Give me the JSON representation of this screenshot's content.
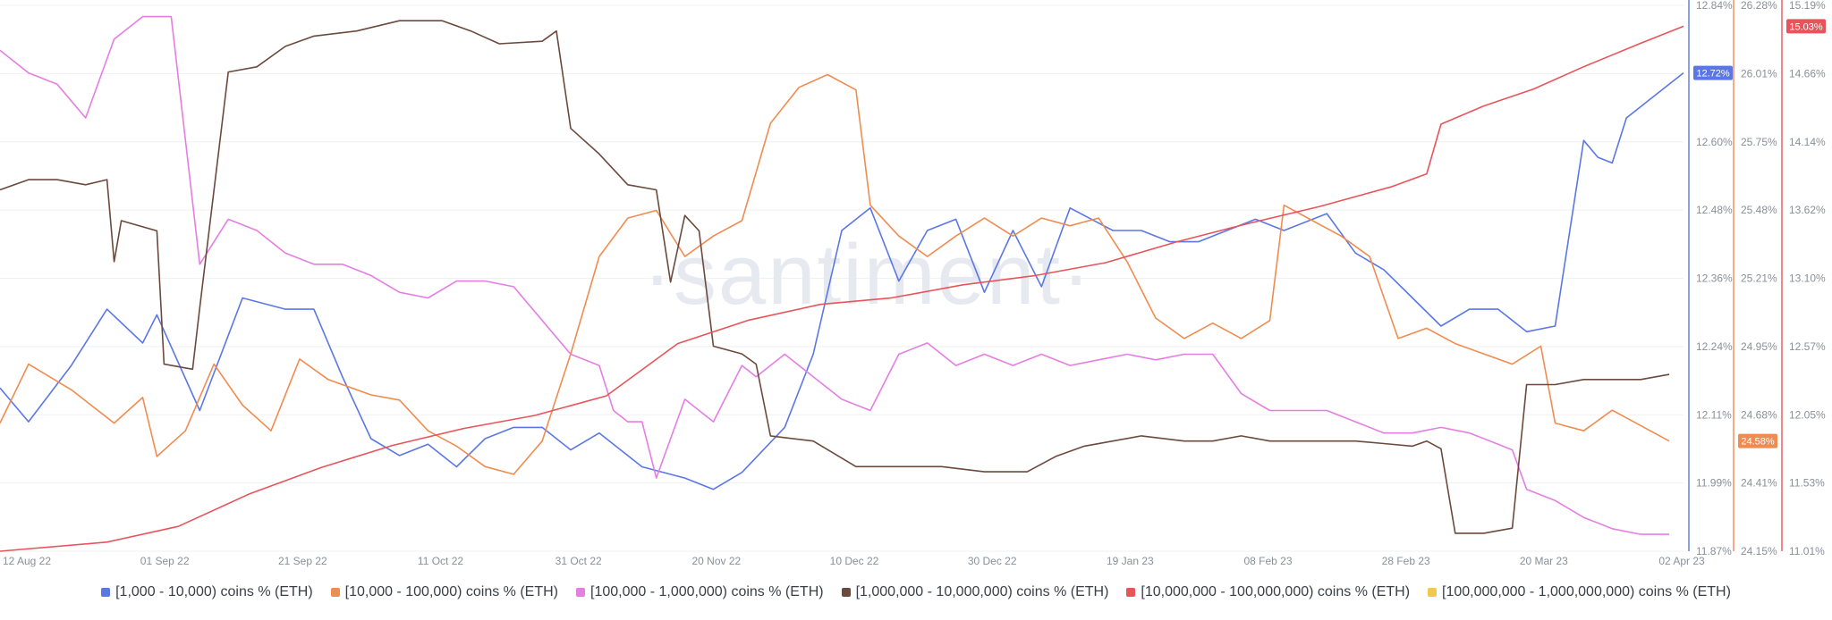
{
  "watermark": "·santiment·",
  "colors": {
    "grid": "#eef0f3",
    "tick": "#8a8f98"
  },
  "chart_data": {
    "type": "line",
    "x_labels": [
      "12 Aug 22",
      "01 Sep 22",
      "21 Sep 22",
      "11 Oct 22",
      "31 Oct 22",
      "20 Nov 22",
      "10 Dec 22",
      "30 Dec 22",
      "19 Jan 23",
      "08 Feb 23",
      "28 Feb 23",
      "20 Mar 23",
      "02 Apr 23"
    ],
    "x_range_days": [
      0,
      236
    ],
    "grid": true,
    "legend_position": "bottom",
    "axes": [
      {
        "id": "blue",
        "ticks": [
          "12.84%",
          "12.72%",
          "12.60%",
          "12.48%",
          "12.36%",
          "12.24%",
          "12.11%",
          "11.99%",
          "11.87%"
        ],
        "ylim": [
          11.87,
          12.84
        ],
        "color": "#5b77e6"
      },
      {
        "id": "orange",
        "ticks": [
          "26.28%",
          "26.01%",
          "25.75%",
          "25.48%",
          "25.21%",
          "24.95%",
          "24.68%",
          "24.41%",
          "24.15%"
        ],
        "ylim": [
          24.15,
          26.28
        ],
        "color": "#f08c50"
      },
      {
        "id": "red",
        "ticks": [
          "15.19%",
          "14.66%",
          "14.14%",
          "13.62%",
          "13.10%",
          "12.57%",
          "12.05%",
          "11.53%",
          "11.01%"
        ],
        "ylim": [
          11.01,
          15.19
        ],
        "color": "#e8545a"
      }
    ],
    "badges": [
      {
        "axis": "blue",
        "value": 12.72,
        "label": "12.72%",
        "color": "#5b77e6"
      },
      {
        "axis": "orange",
        "value": 24.58,
        "label": "24.58%",
        "color": "#f08c50"
      },
      {
        "axis": "red",
        "value": 15.03,
        "label": "15.03%",
        "color": "#e8545a"
      }
    ],
    "series": [
      {
        "name": "[1,000 - 10,000) coins % (ETH)",
        "color": "#5b77e6",
        "axis": "blue",
        "points": [
          [
            0,
            12.16
          ],
          [
            4,
            12.1
          ],
          [
            10,
            12.2
          ],
          [
            15,
            12.3
          ],
          [
            20,
            12.24
          ],
          [
            22,
            12.29
          ],
          [
            28,
            12.12
          ],
          [
            34,
            12.32
          ],
          [
            40,
            12.3
          ],
          [
            44,
            12.3
          ],
          [
            48,
            12.18
          ],
          [
            52,
            12.07
          ],
          [
            56,
            12.04
          ],
          [
            60,
            12.06
          ],
          [
            64,
            12.02
          ],
          [
            68,
            12.07
          ],
          [
            72,
            12.09
          ],
          [
            76,
            12.09
          ],
          [
            80,
            12.05
          ],
          [
            84,
            12.08
          ],
          [
            90,
            12.02
          ],
          [
            96,
            12.0
          ],
          [
            100,
            11.98
          ],
          [
            104,
            12.01
          ],
          [
            110,
            12.09
          ],
          [
            114,
            12.22
          ],
          [
            118,
            12.44
          ],
          [
            122,
            12.48
          ],
          [
            126,
            12.35
          ],
          [
            130,
            12.44
          ],
          [
            134,
            12.46
          ],
          [
            138,
            12.33
          ],
          [
            142,
            12.44
          ],
          [
            146,
            12.34
          ],
          [
            150,
            12.48
          ],
          [
            156,
            12.44
          ],
          [
            160,
            12.44
          ],
          [
            164,
            12.42
          ],
          [
            168,
            12.42
          ],
          [
            172,
            12.44
          ],
          [
            176,
            12.46
          ],
          [
            180,
            12.44
          ],
          [
            186,
            12.47
          ],
          [
            190,
            12.4
          ],
          [
            194,
            12.37
          ],
          [
            198,
            12.32
          ],
          [
            202,
            12.27
          ],
          [
            206,
            12.3
          ],
          [
            210,
            12.3
          ],
          [
            214,
            12.26
          ],
          [
            218,
            12.27
          ],
          [
            222,
            12.6
          ],
          [
            224,
            12.57
          ],
          [
            226,
            12.56
          ],
          [
            228,
            12.64
          ],
          [
            232,
            12.68
          ],
          [
            236,
            12.72
          ]
        ]
      },
      {
        "name": "[10,000 - 100,000) coins % (ETH)",
        "color": "#f08c50",
        "axis": "orange",
        "points": [
          [
            0,
            24.65
          ],
          [
            4,
            24.88
          ],
          [
            10,
            24.78
          ],
          [
            16,
            24.65
          ],
          [
            20,
            24.75
          ],
          [
            22,
            24.52
          ],
          [
            26,
            24.62
          ],
          [
            30,
            24.88
          ],
          [
            34,
            24.72
          ],
          [
            38,
            24.62
          ],
          [
            42,
            24.9
          ],
          [
            46,
            24.82
          ],
          [
            52,
            24.76
          ],
          [
            56,
            24.74
          ],
          [
            60,
            24.62
          ],
          [
            64,
            24.56
          ],
          [
            68,
            24.48
          ],
          [
            72,
            24.45
          ],
          [
            76,
            24.58
          ],
          [
            80,
            24.92
          ],
          [
            84,
            25.3
          ],
          [
            88,
            25.45
          ],
          [
            92,
            25.48
          ],
          [
            96,
            25.3
          ],
          [
            100,
            25.38
          ],
          [
            104,
            25.44
          ],
          [
            108,
            25.82
          ],
          [
            112,
            25.96
          ],
          [
            116,
            26.01
          ],
          [
            120,
            25.95
          ],
          [
            122,
            25.5
          ],
          [
            126,
            25.38
          ],
          [
            130,
            25.3
          ],
          [
            134,
            25.38
          ],
          [
            138,
            25.45
          ],
          [
            142,
            25.38
          ],
          [
            146,
            25.45
          ],
          [
            150,
            25.42
          ],
          [
            154,
            25.45
          ],
          [
            158,
            25.28
          ],
          [
            162,
            25.06
          ],
          [
            166,
            24.98
          ],
          [
            170,
            25.04
          ],
          [
            174,
            24.98
          ],
          [
            178,
            25.05
          ],
          [
            180,
            25.5
          ],
          [
            184,
            25.44
          ],
          [
            188,
            25.38
          ],
          [
            192,
            25.3
          ],
          [
            196,
            24.98
          ],
          [
            200,
            25.02
          ],
          [
            204,
            24.96
          ],
          [
            208,
            24.92
          ],
          [
            212,
            24.88
          ],
          [
            216,
            24.95
          ],
          [
            218,
            24.65
          ],
          [
            222,
            24.62
          ],
          [
            226,
            24.7
          ],
          [
            230,
            24.64
          ],
          [
            234,
            24.58
          ]
        ]
      },
      {
        "name": "[100,000  - 1,000,000) coins % (ETH)",
        "color": "#e57ee3",
        "axis": "blue",
        "points": [
          [
            0,
            12.76
          ],
          [
            4,
            12.72
          ],
          [
            8,
            12.7
          ],
          [
            12,
            12.64
          ],
          [
            16,
            12.78
          ],
          [
            20,
            12.82
          ],
          [
            24,
            12.82
          ],
          [
            28,
            12.38
          ],
          [
            32,
            12.46
          ],
          [
            36,
            12.44
          ],
          [
            40,
            12.4
          ],
          [
            44,
            12.38
          ],
          [
            48,
            12.38
          ],
          [
            52,
            12.36
          ],
          [
            56,
            12.33
          ],
          [
            60,
            12.32
          ],
          [
            64,
            12.35
          ],
          [
            68,
            12.35
          ],
          [
            72,
            12.34
          ],
          [
            76,
            12.28
          ],
          [
            80,
            12.22
          ],
          [
            84,
            12.2
          ],
          [
            86,
            12.12
          ],
          [
            88,
            12.1
          ],
          [
            90,
            12.1
          ],
          [
            92,
            12.0
          ],
          [
            96,
            12.14
          ],
          [
            100,
            12.1
          ],
          [
            104,
            12.2
          ],
          [
            106,
            12.18
          ],
          [
            110,
            12.22
          ],
          [
            114,
            12.18
          ],
          [
            118,
            12.14
          ],
          [
            122,
            12.12
          ],
          [
            126,
            12.22
          ],
          [
            130,
            12.24
          ],
          [
            134,
            12.2
          ],
          [
            138,
            12.22
          ],
          [
            142,
            12.2
          ],
          [
            146,
            12.22
          ],
          [
            150,
            12.2
          ],
          [
            154,
            12.21
          ],
          [
            158,
            12.22
          ],
          [
            162,
            12.21
          ],
          [
            166,
            12.22
          ],
          [
            170,
            12.22
          ],
          [
            174,
            12.15
          ],
          [
            178,
            12.12
          ],
          [
            182,
            12.12
          ],
          [
            186,
            12.12
          ],
          [
            190,
            12.1
          ],
          [
            194,
            12.08
          ],
          [
            198,
            12.08
          ],
          [
            202,
            12.09
          ],
          [
            206,
            12.08
          ],
          [
            210,
            12.06
          ],
          [
            212,
            12.05
          ],
          [
            214,
            11.98
          ],
          [
            218,
            11.96
          ],
          [
            222,
            11.93
          ],
          [
            226,
            11.91
          ],
          [
            230,
            11.9
          ],
          [
            234,
            11.9
          ]
        ]
      },
      {
        "name": "[1,000,000 - 10,000,000) coins % (ETH)",
        "color": "#6b4a3e",
        "axis": "orange",
        "points": [
          [
            0,
            25.56
          ],
          [
            4,
            25.6
          ],
          [
            8,
            25.6
          ],
          [
            12,
            25.58
          ],
          [
            15,
            25.6
          ],
          [
            16,
            25.28
          ],
          [
            17,
            25.44
          ],
          [
            22,
            25.4
          ],
          [
            23,
            24.88
          ],
          [
            27,
            24.86
          ],
          [
            28,
            25.1
          ],
          [
            32,
            26.02
          ],
          [
            36,
            26.04
          ],
          [
            40,
            26.12
          ],
          [
            44,
            26.16
          ],
          [
            50,
            26.18
          ],
          [
            56,
            26.22
          ],
          [
            62,
            26.22
          ],
          [
            66,
            26.18
          ],
          [
            70,
            26.13
          ],
          [
            76,
            26.14
          ],
          [
            78,
            26.18
          ],
          [
            80,
            25.8
          ],
          [
            84,
            25.7
          ],
          [
            88,
            25.58
          ],
          [
            92,
            25.56
          ],
          [
            94,
            25.2
          ],
          [
            96,
            25.46
          ],
          [
            98,
            25.4
          ],
          [
            100,
            24.95
          ],
          [
            104,
            24.92
          ],
          [
            106,
            24.88
          ],
          [
            108,
            24.6
          ],
          [
            114,
            24.58
          ],
          [
            120,
            24.48
          ],
          [
            126,
            24.48
          ],
          [
            132,
            24.48
          ],
          [
            138,
            24.46
          ],
          [
            144,
            24.46
          ],
          [
            148,
            24.52
          ],
          [
            152,
            24.56
          ],
          [
            156,
            24.58
          ],
          [
            160,
            24.6
          ],
          [
            166,
            24.58
          ],
          [
            170,
            24.58
          ],
          [
            174,
            24.6
          ],
          [
            178,
            24.58
          ],
          [
            182,
            24.58
          ],
          [
            186,
            24.58
          ],
          [
            190,
            24.58
          ],
          [
            194,
            24.57
          ],
          [
            198,
            24.56
          ],
          [
            200,
            24.58
          ],
          [
            202,
            24.55
          ],
          [
            204,
            24.22
          ],
          [
            208,
            24.22
          ],
          [
            212,
            24.24
          ],
          [
            214,
            24.8
          ],
          [
            218,
            24.8
          ],
          [
            222,
            24.82
          ],
          [
            226,
            24.82
          ],
          [
            230,
            24.82
          ],
          [
            234,
            24.84
          ]
        ]
      },
      {
        "name": "[10,000,000 - 100,000,000) coins % (ETH)",
        "color": "#e8545a",
        "axis": "red",
        "points": [
          [
            0,
            11.01
          ],
          [
            15,
            11.08
          ],
          [
            25,
            11.2
          ],
          [
            35,
            11.45
          ],
          [
            45,
            11.65
          ],
          [
            55,
            11.82
          ],
          [
            65,
            11.95
          ],
          [
            75,
            12.05
          ],
          [
            85,
            12.2
          ],
          [
            95,
            12.6
          ],
          [
            105,
            12.78
          ],
          [
            115,
            12.9
          ],
          [
            125,
            12.95
          ],
          [
            135,
            13.05
          ],
          [
            145,
            13.12
          ],
          [
            155,
            13.22
          ],
          [
            165,
            13.38
          ],
          [
            175,
            13.52
          ],
          [
            185,
            13.65
          ],
          [
            195,
            13.8
          ],
          [
            200,
            13.9
          ],
          [
            202,
            14.28
          ],
          [
            208,
            14.42
          ],
          [
            215,
            14.55
          ],
          [
            222,
            14.72
          ],
          [
            230,
            14.9
          ],
          [
            236,
            15.03
          ]
        ]
      },
      {
        "name": "[100,000,000 - 1,000,000,000) coins % (ETH)",
        "color": "#f2c94c",
        "axis": "red",
        "points": []
      }
    ]
  }
}
